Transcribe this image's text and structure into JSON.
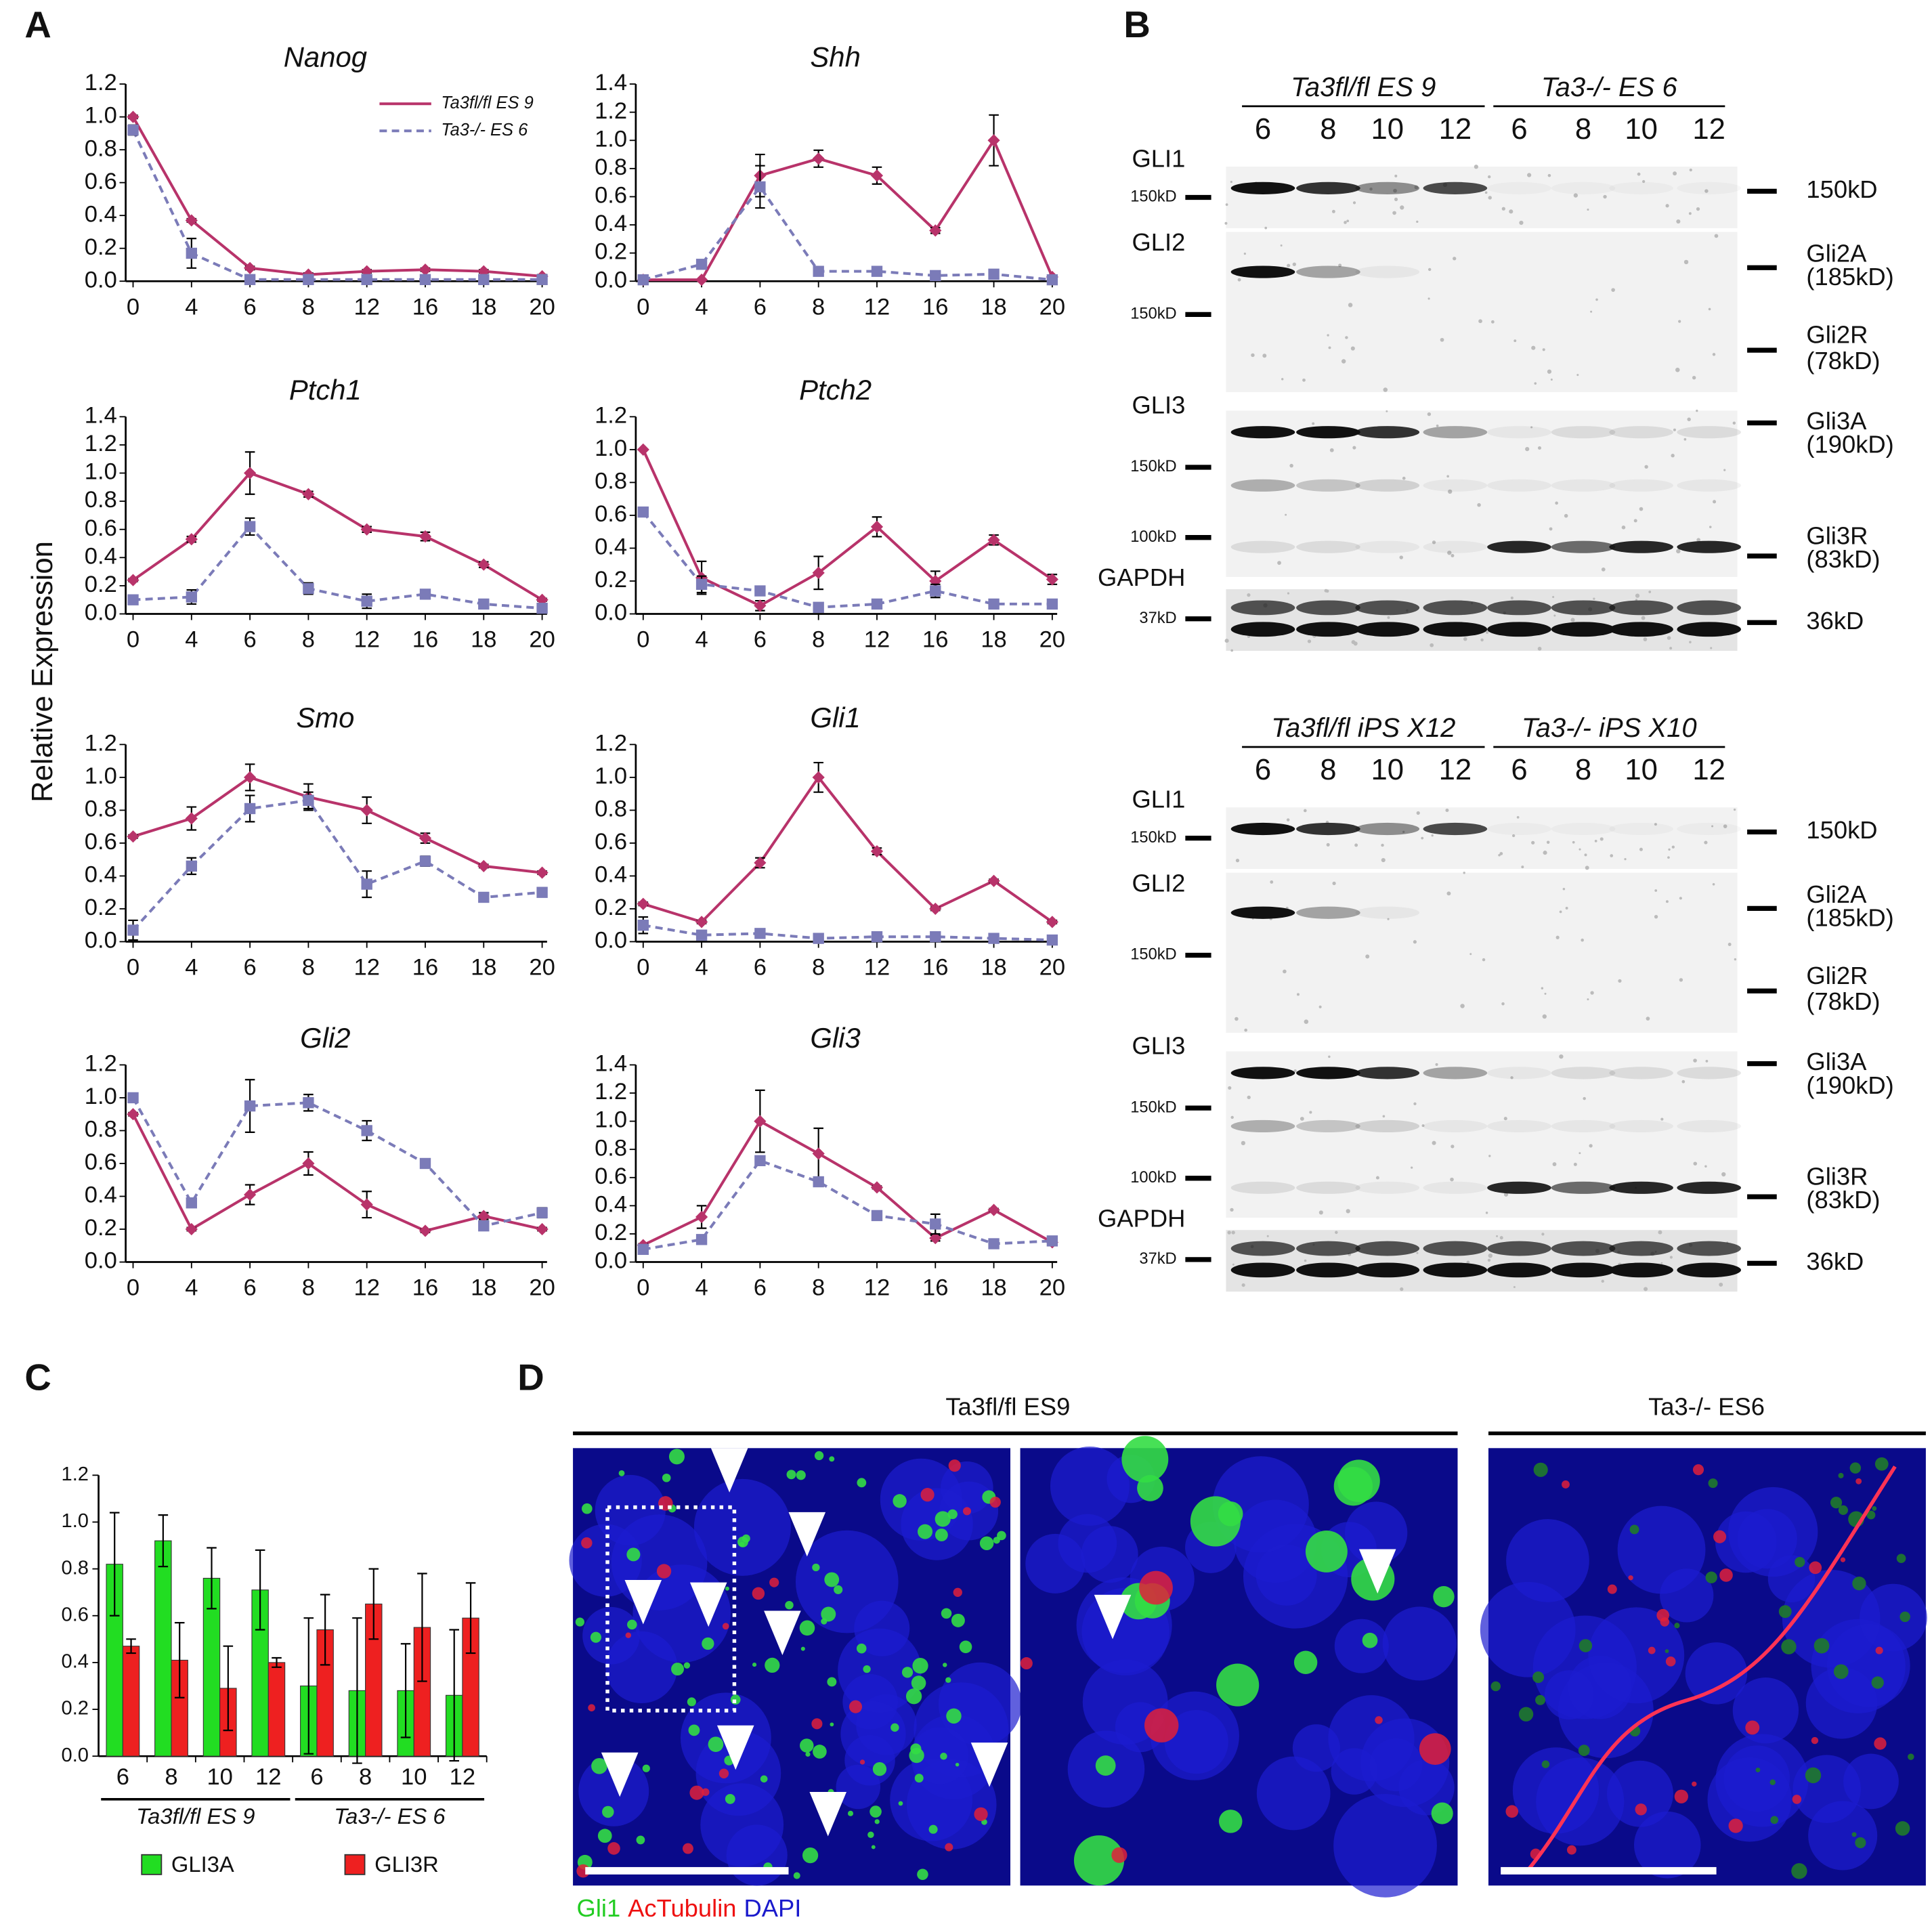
{
  "panel_labels": [
    "A",
    "B",
    "C",
    "D"
  ],
  "panel_a": {
    "ylabel": "Relative Expression"
  },
  "chart_data": [
    {
      "type": "line",
      "title": "Nanog",
      "categories": [
        "0",
        "4",
        "6",
        "8",
        "12",
        "16",
        "18",
        "20"
      ],
      "ylim": [
        0,
        1.2
      ],
      "yticks": [
        0.0,
        0.2,
        0.4,
        0.6,
        0.8,
        1.0,
        1.2
      ],
      "legend": "upper right",
      "series": [
        {
          "name": "Ta3fl/fl ES 9",
          "color": "#b8336a",
          "line_style": "solid",
          "marker": "diamond",
          "values": [
            1.0,
            0.37,
            0.08,
            0.04,
            0.06,
            0.07,
            0.06,
            0.03
          ],
          "errors": [
            0.01,
            0.01,
            0.01,
            0.01,
            0.01,
            0.01,
            0.01,
            0.01
          ]
        },
        {
          "name": "Ta3-/- ES 6",
          "color": "#7b7bb8",
          "line_style": "dashed",
          "marker": "square",
          "values": [
            0.92,
            0.17,
            0.01,
            0.01,
            0.01,
            0.01,
            0.01,
            0.01
          ],
          "errors": [
            0.03,
            0.09,
            0.0,
            0.0,
            0.0,
            0.0,
            0.0,
            0.0
          ]
        }
      ]
    },
    {
      "type": "line",
      "title": "Shh",
      "categories": [
        "0",
        "4",
        "6",
        "8",
        "12",
        "16",
        "18",
        "20"
      ],
      "ylim": [
        0,
        1.4
      ],
      "yticks": [
        0.0,
        0.2,
        0.4,
        0.6,
        0.8,
        1.0,
        1.2,
        1.4
      ],
      "series": [
        {
          "name": "Ta3fl/fl ES 9",
          "color": "#b8336a",
          "line_style": "solid",
          "marker": "diamond",
          "values": [
            0.01,
            0.01,
            0.75,
            0.87,
            0.75,
            0.36,
            1.0,
            0.03
          ],
          "errors": [
            0.0,
            0.0,
            0.15,
            0.06,
            0.06,
            0.02,
            0.18,
            0.01
          ]
        },
        {
          "name": "Ta3-/- ES 6",
          "color": "#7b7bb8",
          "line_style": "dashed",
          "marker": "square",
          "values": [
            0.01,
            0.12,
            0.67,
            0.07,
            0.07,
            0.04,
            0.05,
            0.01
          ],
          "errors": [
            0.0,
            0.02,
            0.15,
            0.01,
            0.01,
            0.0,
            0.0,
            0.0
          ]
        }
      ]
    },
    {
      "type": "line",
      "title": "Ptch1",
      "categories": [
        "0",
        "4",
        "6",
        "8",
        "12",
        "16",
        "18",
        "20"
      ],
      "ylim": [
        0,
        1.4
      ],
      "yticks": [
        0.0,
        0.2,
        0.4,
        0.6,
        0.8,
        1.0,
        1.2,
        1.4
      ],
      "series": [
        {
          "name": "Ta3fl/fl ES 9",
          "color": "#b8336a",
          "line_style": "solid",
          "marker": "diamond",
          "values": [
            0.24,
            0.53,
            1.0,
            0.85,
            0.6,
            0.55,
            0.35,
            0.1
          ],
          "errors": [
            0.01,
            0.02,
            0.15,
            0.02,
            0.02,
            0.03,
            0.02,
            0.01
          ]
        },
        {
          "name": "Ta3-/- ES 6",
          "color": "#7b7bb8",
          "line_style": "dashed",
          "marker": "square",
          "values": [
            0.1,
            0.12,
            0.62,
            0.18,
            0.09,
            0.14,
            0.07,
            0.04
          ],
          "errors": [
            0.01,
            0.05,
            0.06,
            0.04,
            0.05,
            0.01,
            0.0,
            0.0
          ]
        }
      ]
    },
    {
      "type": "line",
      "title": "Ptch2",
      "categories": [
        "0",
        "4",
        "6",
        "8",
        "12",
        "16",
        "18",
        "20"
      ],
      "ylim": [
        0,
        1.2
      ],
      "yticks": [
        0.0,
        0.2,
        0.4,
        0.6,
        0.8,
        1.0,
        1.2
      ],
      "series": [
        {
          "name": "Ta3fl/fl ES 9",
          "color": "#b8336a",
          "line_style": "solid",
          "marker": "diamond",
          "values": [
            1.0,
            0.22,
            0.05,
            0.25,
            0.53,
            0.2,
            0.45,
            0.21
          ],
          "errors": [
            0.0,
            0.1,
            0.03,
            0.1,
            0.06,
            0.06,
            0.03,
            0.03
          ]
        },
        {
          "name": "Ta3-/- ES 6",
          "color": "#7b7bb8",
          "line_style": "dashed",
          "marker": "square",
          "values": [
            0.62,
            0.18,
            0.14,
            0.04,
            0.06,
            0.14,
            0.06,
            0.06
          ],
          "errors": [
            0.02,
            0.05,
            0.01,
            0.0,
            0.0,
            0.04,
            0.0,
            0.0
          ]
        }
      ]
    },
    {
      "type": "line",
      "title": "Smo",
      "categories": [
        "0",
        "4",
        "6",
        "8",
        "12",
        "16",
        "18",
        "20"
      ],
      "ylim": [
        0,
        1.2
      ],
      "yticks": [
        0.0,
        0.2,
        0.4,
        0.6,
        0.8,
        1.0,
        1.2
      ],
      "series": [
        {
          "name": "Ta3fl/fl ES 9",
          "color": "#b8336a",
          "line_style": "solid",
          "marker": "diamond",
          "values": [
            0.64,
            0.75,
            1.0,
            0.88,
            0.8,
            0.63,
            0.46,
            0.42
          ],
          "errors": [
            0.01,
            0.07,
            0.08,
            0.08,
            0.08,
            0.03,
            0.01,
            0.01
          ]
        },
        {
          "name": "Ta3-/- ES 6",
          "color": "#7b7bb8",
          "line_style": "dashed",
          "marker": "square",
          "values": [
            0.07,
            0.46,
            0.81,
            0.86,
            0.35,
            0.49,
            0.27,
            0.3
          ],
          "errors": [
            0.06,
            0.05,
            0.08,
            0.05,
            0.08,
            0.03,
            0.01,
            0.01
          ]
        }
      ]
    },
    {
      "type": "line",
      "title": "Gli1",
      "categories": [
        "0",
        "4",
        "6",
        "8",
        "12",
        "16",
        "18",
        "20"
      ],
      "ylim": [
        0,
        1.2
      ],
      "yticks": [
        0.0,
        0.2,
        0.4,
        0.6,
        0.8,
        1.0,
        1.2
      ],
      "series": [
        {
          "name": "Ta3fl/fl ES 9",
          "color": "#b8336a",
          "line_style": "solid",
          "marker": "diamond",
          "values": [
            0.23,
            0.12,
            0.48,
            1.0,
            0.55,
            0.2,
            0.37,
            0.12
          ],
          "errors": [
            0.01,
            0.01,
            0.03,
            0.09,
            0.02,
            0.01,
            0.01,
            0.01
          ]
        },
        {
          "name": "Ta3-/- ES 6",
          "color": "#7b7bb8",
          "line_style": "dashed",
          "marker": "square",
          "values": [
            0.1,
            0.04,
            0.05,
            0.02,
            0.03,
            0.03,
            0.02,
            0.01
          ],
          "errors": [
            0.05,
            0.02,
            0.0,
            0.0,
            0.0,
            0.0,
            0.0,
            0.0
          ]
        }
      ]
    },
    {
      "type": "line",
      "title": "Gli2",
      "categories": [
        "0",
        "4",
        "6",
        "8",
        "12",
        "16",
        "18",
        "20"
      ],
      "ylim": [
        0,
        1.2
      ],
      "yticks": [
        0.0,
        0.2,
        0.4,
        0.6,
        0.8,
        1.0,
        1.2
      ],
      "series": [
        {
          "name": "Ta3fl/fl ES 9",
          "color": "#b8336a",
          "line_style": "solid",
          "marker": "diamond",
          "values": [
            0.9,
            0.2,
            0.41,
            0.6,
            0.35,
            0.19,
            0.28,
            0.2
          ],
          "errors": [
            0.01,
            0.01,
            0.06,
            0.07,
            0.08,
            0.01,
            0.02,
            0.01
          ]
        },
        {
          "name": "Ta3-/- ES 6",
          "color": "#7b7bb8",
          "line_style": "dashed",
          "marker": "square",
          "values": [
            1.0,
            0.36,
            0.95,
            0.97,
            0.8,
            0.6,
            0.22,
            0.3
          ],
          "errors": [
            0.01,
            0.01,
            0.16,
            0.05,
            0.06,
            0.01,
            0.01,
            0.03
          ]
        }
      ]
    },
    {
      "type": "line",
      "title": "Gli3",
      "categories": [
        "0",
        "4",
        "6",
        "8",
        "12",
        "16",
        "18",
        "20"
      ],
      "ylim": [
        0,
        1.4
      ],
      "yticks": [
        0.0,
        0.2,
        0.4,
        0.6,
        0.8,
        1.0,
        1.2,
        1.4
      ],
      "series": [
        {
          "name": "Ta3fl/fl ES 9",
          "color": "#b8336a",
          "line_style": "solid",
          "marker": "diamond",
          "values": [
            0.12,
            0.32,
            1.0,
            0.77,
            0.53,
            0.17,
            0.37,
            0.14
          ],
          "errors": [
            0.01,
            0.08,
            0.22,
            0.18,
            0.01,
            0.02,
            0.01,
            0.01
          ]
        },
        {
          "name": "Ta3-/- ES 6",
          "color": "#7b7bb8",
          "line_style": "dashed",
          "marker": "square",
          "values": [
            0.09,
            0.16,
            0.72,
            0.57,
            0.33,
            0.27,
            0.13,
            0.15
          ],
          "errors": [
            0.01,
            0.01,
            0.03,
            0.02,
            0.03,
            0.07,
            0.0,
            0.01
          ]
        }
      ]
    },
    {
      "type": "bar",
      "categories": [
        "6",
        "8",
        "10",
        "12",
        "6",
        "8",
        "10",
        "12"
      ],
      "groups": [
        "Ta3fl/fl ES 9",
        "Ta3-/- ES 6"
      ],
      "ylim": [
        0,
        1.2
      ],
      "yticks": [
        0.0,
        0.2,
        0.4,
        0.6,
        0.8,
        1.0,
        1.2
      ],
      "legend": "bottom",
      "series": [
        {
          "name": "GLI3A",
          "color": "#22dd22",
          "values": [
            0.82,
            0.92,
            0.76,
            0.71,
            0.3,
            0.28,
            0.28,
            0.26
          ],
          "errors": [
            0.22,
            0.11,
            0.13,
            0.17,
            0.29,
            0.31,
            0.2,
            0.28
          ]
        },
        {
          "name": "GLI3R",
          "color": "#ee2020",
          "values": [
            0.47,
            0.41,
            0.29,
            0.4,
            0.54,
            0.65,
            0.55,
            0.59
          ],
          "errors": [
            0.03,
            0.16,
            0.18,
            0.02,
            0.15,
            0.15,
            0.23,
            0.15
          ]
        }
      ]
    }
  ],
  "blots": [
    {
      "groups": [
        "Ta3fl/fl ES 9",
        "Ta3-/- ES 6"
      ],
      "lanes": [
        "6",
        "8",
        "10",
        "12",
        "6",
        "8",
        "10",
        "12"
      ],
      "rows": [
        {
          "label": "GLI1",
          "markers": [
            "150kD"
          ],
          "right": [
            "150kD"
          ]
        },
        {
          "label": "GLI2",
          "markers": [
            "150kD"
          ],
          "right": [
            "Gli2A",
            "(185kD)",
            "Gli2R",
            "(78kD)"
          ]
        },
        {
          "label": "GLI3",
          "markers": [
            "150kD",
            "100kD"
          ],
          "right": [
            "Gli3A",
            "(190kD)",
            "Gli3R",
            "(83kD)"
          ]
        },
        {
          "label": "GAPDH",
          "markers": [
            "37kD"
          ],
          "right": [
            "36kD"
          ]
        }
      ]
    },
    {
      "groups": [
        "Ta3fl/fl iPS X12",
        "Ta3-/- iPS X10"
      ],
      "lanes": [
        "6",
        "8",
        "10",
        "12",
        "6",
        "8",
        "10",
        "12"
      ],
      "rows": [
        {
          "label": "GLI1",
          "markers": [
            "150kD"
          ],
          "right": [
            "150kD"
          ]
        },
        {
          "label": "GLI2",
          "markers": [
            "150kD"
          ],
          "right": [
            "Gli2A",
            "(185kD)",
            "Gli2R",
            "(78kD)"
          ]
        },
        {
          "label": "GLI3",
          "markers": [
            "150kD",
            "100kD"
          ],
          "right": [
            "Gli3A",
            "(190kD)",
            "Gli3R",
            "(83kD)"
          ]
        },
        {
          "label": "GAPDH",
          "markers": [
            "37kD"
          ],
          "right": [
            "36kD"
          ]
        }
      ]
    }
  ],
  "micrographs": {
    "headers": [
      "Ta3fl/fl ES9",
      "Ta3-/- ES6"
    ],
    "stains": [
      {
        "name": "Gli1",
        "color": "#22cc22"
      },
      {
        "name": "AcTubulin",
        "color": "#ee1111"
      },
      {
        "name": "DAPI",
        "color": "#1a1acc"
      }
    ]
  }
}
